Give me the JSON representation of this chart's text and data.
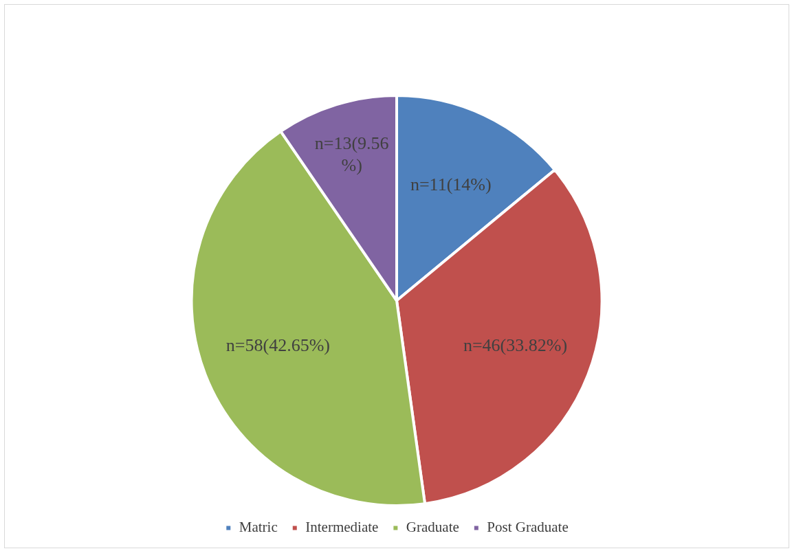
{
  "chart_data": {
    "type": "pie",
    "categories": [
      "Matric",
      "Intermediate",
      "Graduate",
      "Post Graduate"
    ],
    "values": [
      14,
      33.82,
      42.65,
      9.56
    ],
    "colors": [
      "#4f81bd",
      "#c0504d",
      "#9bbb59",
      "#8064a2"
    ],
    "value_labels": [
      "n=11(14%)",
      "n=46(33.82%)",
      "n=58(42.65%)",
      "n=13(9.56%)"
    ],
    "legend": "bottom"
  }
}
